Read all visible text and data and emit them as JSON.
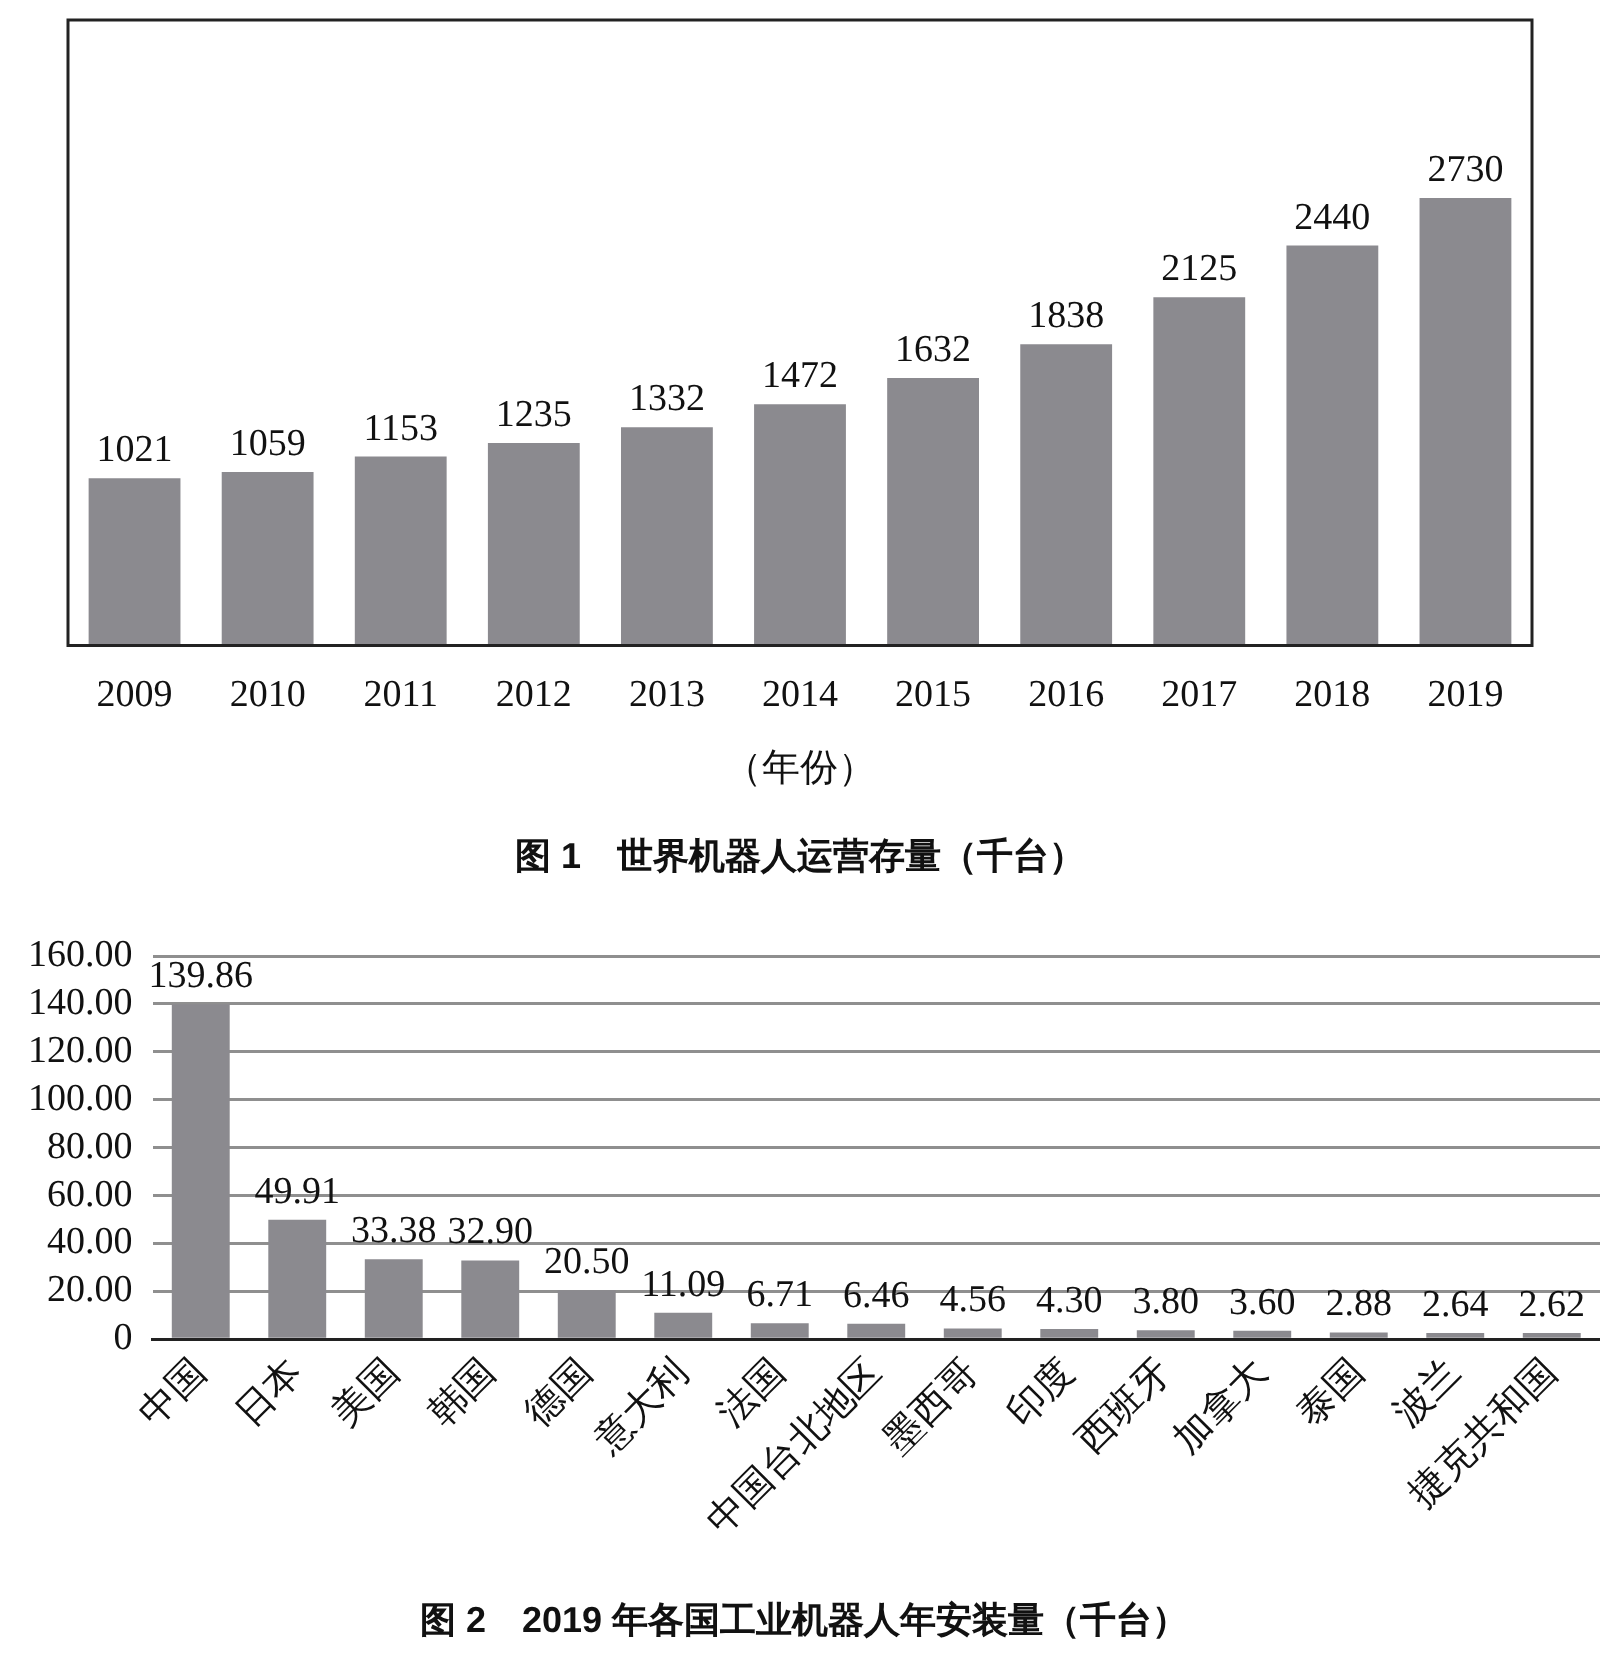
{
  "chart_data": [
    {
      "type": "bar",
      "title": "图 1　世界机器人运营存量（千台）",
      "xlabel": "（年份）",
      "categories": [
        "2009",
        "2010",
        "2011",
        "2012",
        "2013",
        "2014",
        "2015",
        "2016",
        "2017",
        "2018",
        "2019"
      ],
      "values": [
        1021,
        1059,
        1153,
        1235,
        1332,
        1472,
        1632,
        1838,
        2125,
        2440,
        2730
      ],
      "color": "#8b8a8f",
      "data_labels": true,
      "tick_labels": "x"
    },
    {
      "type": "bar",
      "title": "图 2　2019 年各国工业机器人年安装量（千台）",
      "categories": [
        "中国",
        "日本",
        "美国",
        "韩国",
        "德国",
        "意大利",
        "法国",
        "中国台北地区",
        "墨西哥",
        "印度",
        "西班牙",
        "加拿大",
        "泰国",
        "波兰",
        "捷克共和国"
      ],
      "values": [
        139.86,
        49.91,
        33.38,
        32.9,
        20.5,
        11.09,
        6.71,
        6.46,
        4.56,
        4.3,
        3.8,
        3.6,
        2.88,
        2.64,
        2.62
      ],
      "value_labels": [
        "139.86",
        "49.91",
        "33.38",
        "32.90",
        "20.50",
        "11.09",
        "6.71",
        "6.46",
        "4.56",
        "4.30",
        "3.80",
        "3.60",
        "2.88",
        "2.64",
        "2.62"
      ],
      "color": "#8b8a8f",
      "ylim": [
        0,
        160
      ],
      "yticks": [
        0,
        {
          "value": 20,
          "label": "20.00"
        },
        {
          "value": 40,
          "label": "40.00"
        },
        {
          "value": 60,
          "label": "60.00"
        },
        {
          "value": 80,
          "label": "80.00"
        },
        {
          "value": 100,
          "label": "100.00"
        },
        {
          "value": 120,
          "label": "120.00"
        },
        {
          "value": 140,
          "label": "140.00"
        },
        {
          "value": 160,
          "label": "160.00"
        }
      ],
      "grid": "y"
    }
  ]
}
